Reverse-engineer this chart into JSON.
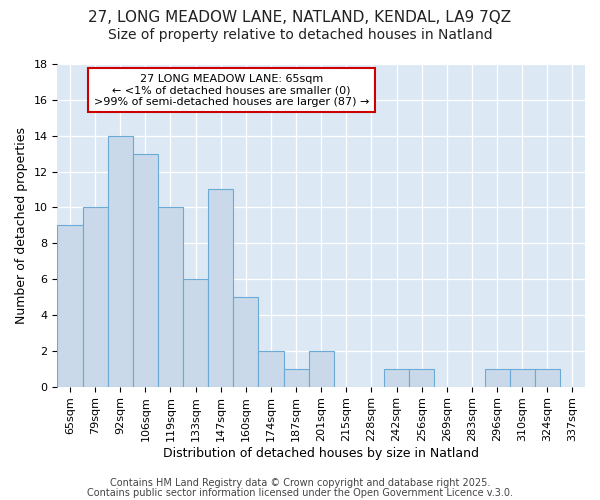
{
  "title1": "27, LONG MEADOW LANE, NATLAND, KENDAL, LA9 7QZ",
  "title2": "Size of property relative to detached houses in Natland",
  "xlabel": "Distribution of detached houses by size in Natland",
  "ylabel": "Number of detached properties",
  "bar_labels": [
    "65sqm",
    "79sqm",
    "92sqm",
    "106sqm",
    "119sqm",
    "133sqm",
    "147sqm",
    "160sqm",
    "174sqm",
    "187sqm",
    "201sqm",
    "215sqm",
    "228sqm",
    "242sqm",
    "256sqm",
    "269sqm",
    "283sqm",
    "296sqm",
    "310sqm",
    "324sqm",
    "337sqm"
  ],
  "bar_values": [
    9,
    10,
    14,
    13,
    10,
    6,
    11,
    5,
    2,
    1,
    2,
    0,
    0,
    1,
    1,
    0,
    0,
    1,
    1,
    1,
    0
  ],
  "bar_color": "#c9d9ea",
  "bar_edgecolor": "#6aaad4",
  "annotation_line1": "27 LONG MEADOW LANE: 65sqm",
  "annotation_line2": "← <1% of detached houses are smaller (0)",
  "annotation_line3": ">99% of semi-detached houses are larger (87) →",
  "annotation_box_facecolor": "#ffffff",
  "annotation_box_edgecolor": "#cc0000",
  "ylim": [
    0,
    18
  ],
  "yticks": [
    0,
    2,
    4,
    6,
    8,
    10,
    12,
    14,
    16,
    18
  ],
  "footer1": "Contains HM Land Registry data © Crown copyright and database right 2025.",
  "footer2": "Contains public sector information licensed under the Open Government Licence v.3.0.",
  "fig_bg_color": "#ffffff",
  "plot_bg_color": "#dce9f5",
  "title1_fontsize": 11,
  "title2_fontsize": 10,
  "axis_label_fontsize": 9,
  "tick_fontsize": 8,
  "footer_fontsize": 7,
  "annotation_fontsize": 8
}
